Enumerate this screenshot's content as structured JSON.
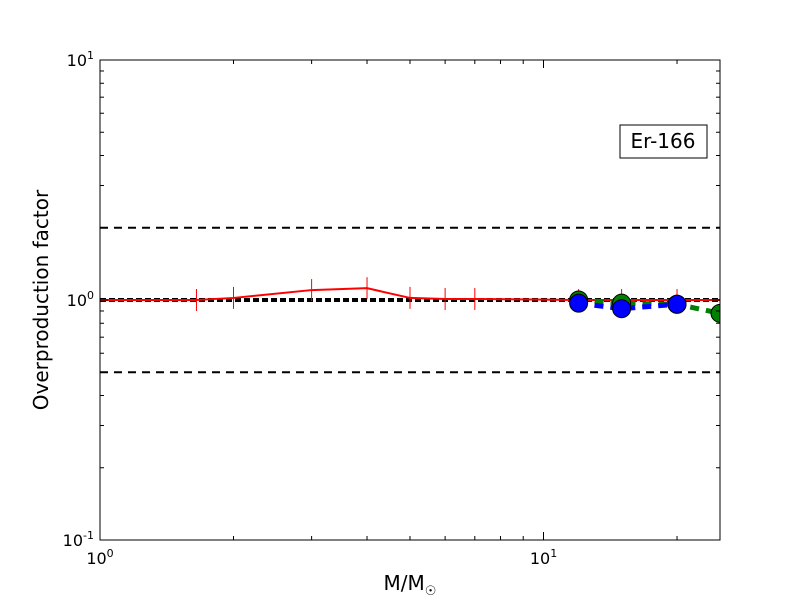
{
  "chart_data": {
    "type": "line",
    "xscale": "log",
    "yscale": "log",
    "xlim": [
      1,
      25
    ],
    "ylim": [
      0.1,
      10
    ],
    "xlabel_main": "M/M",
    "xlabel_sub": "☉",
    "ylabel": "Overproduction factor",
    "annotation": "Er-166",
    "x_ticks": [
      {
        "value": 1,
        "base": "10",
        "exp": "0"
      },
      {
        "value": 10,
        "base": "10",
        "exp": "1"
      }
    ],
    "y_ticks": [
      {
        "value": 0.1,
        "base": "10",
        "exp": "-1"
      },
      {
        "value": 1,
        "base": "10",
        "exp": "0"
      },
      {
        "value": 10,
        "base": "10",
        "exp": "1"
      }
    ],
    "reference_lines": [
      {
        "y": 2.0,
        "style": "dashed",
        "color": "#000000",
        "width": 2
      },
      {
        "y": 1.0,
        "style": "dotted-thick",
        "color": "#000000",
        "width": 4
      },
      {
        "y": 0.5,
        "style": "dashed",
        "color": "#000000",
        "width": 2
      }
    ],
    "series": [
      {
        "color": "#ff0000",
        "style": "solid",
        "marker": "vline",
        "x": [
          1.0,
          1.65,
          2.0,
          3.0,
          4.0,
          5.0,
          6.0,
          7.0,
          12.0,
          15.0,
          20.0,
          25.0
        ],
        "y": [
          1.0,
          1.0,
          1.02,
          1.1,
          1.12,
          1.02,
          1.01,
          1.01,
          1.0,
          1.0,
          1.0,
          1.0
        ]
      },
      {
        "color": "#008000",
        "style": "dashed",
        "marker": "circle",
        "x": [
          12.0,
          15.0,
          20.0,
          25.0
        ],
        "y": [
          1.0,
          0.97,
          0.96,
          0.88
        ]
      },
      {
        "color": "#0000ff",
        "style": "dashed",
        "marker": "circle",
        "x": [
          12.0,
          15.0,
          20.0
        ],
        "y": [
          0.97,
          0.92,
          0.96
        ]
      }
    ]
  }
}
